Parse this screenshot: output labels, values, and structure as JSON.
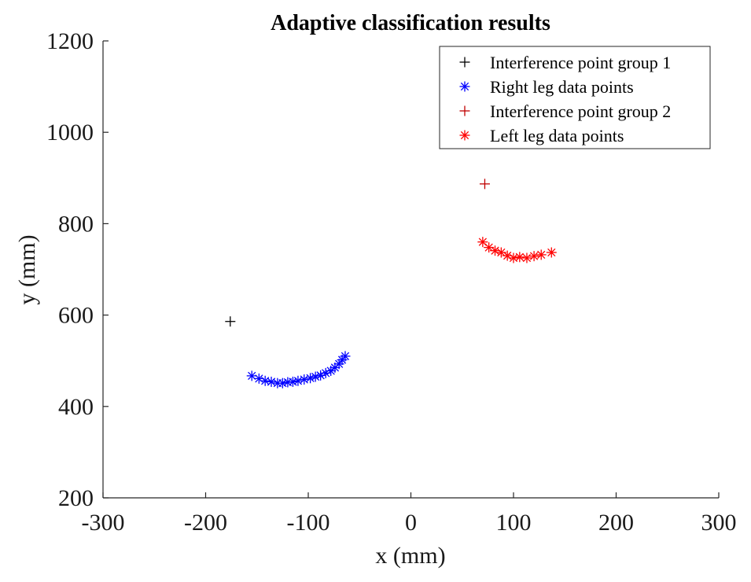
{
  "chart_data": {
    "type": "scatter",
    "title": "Adaptive classification results",
    "xlabel": "x (mm)",
    "ylabel": "y (mm)",
    "xlim": [
      -300,
      300
    ],
    "ylim": [
      200,
      1200
    ],
    "xticks": [
      -300,
      -200,
      -100,
      0,
      100,
      200,
      300
    ],
    "yticks": [
      200,
      400,
      600,
      800,
      1000,
      1200
    ],
    "xtick_labels": [
      "-300",
      "-200",
      "-100",
      "0",
      "100",
      "200",
      "300"
    ],
    "ytick_labels": [
      "200",
      "400",
      "600",
      "800",
      "1000",
      "1200"
    ],
    "grid": false,
    "legend_position": "top-right",
    "series": [
      {
        "name": "Interference point group 1",
        "marker": "plus",
        "color": "#000000",
        "points": [
          [
            -176,
            586
          ]
        ]
      },
      {
        "name": "Right leg data points",
        "marker": "asterisk",
        "color": "#0000ff",
        "points": [
          [
            -155,
            467
          ],
          [
            -148,
            461
          ],
          [
            -142,
            456
          ],
          [
            -136,
            454
          ],
          [
            -130,
            451
          ],
          [
            -125,
            451
          ],
          [
            -120,
            453
          ],
          [
            -115,
            454
          ],
          [
            -110,
            456
          ],
          [
            -104,
            459
          ],
          [
            -98,
            462
          ],
          [
            -93,
            465
          ],
          [
            -88,
            468
          ],
          [
            -83,
            473
          ],
          [
            -78,
            478
          ],
          [
            -74,
            485
          ],
          [
            -70,
            493
          ],
          [
            -67,
            502
          ],
          [
            -64,
            510
          ]
        ]
      },
      {
        "name": "Interference point group 2",
        "marker": "plus",
        "color": "#c00000",
        "points": [
          [
            72,
            887
          ]
        ]
      },
      {
        "name": "Left leg data points",
        "marker": "asterisk",
        "color": "#ff0000",
        "points": [
          [
            70,
            760
          ],
          [
            76,
            748
          ],
          [
            82,
            741
          ],
          [
            88,
            737
          ],
          [
            94,
            730
          ],
          [
            100,
            725
          ],
          [
            106,
            727
          ],
          [
            113,
            725
          ],
          [
            120,
            729
          ],
          [
            127,
            732
          ],
          [
            137,
            737
          ]
        ]
      }
    ]
  }
}
